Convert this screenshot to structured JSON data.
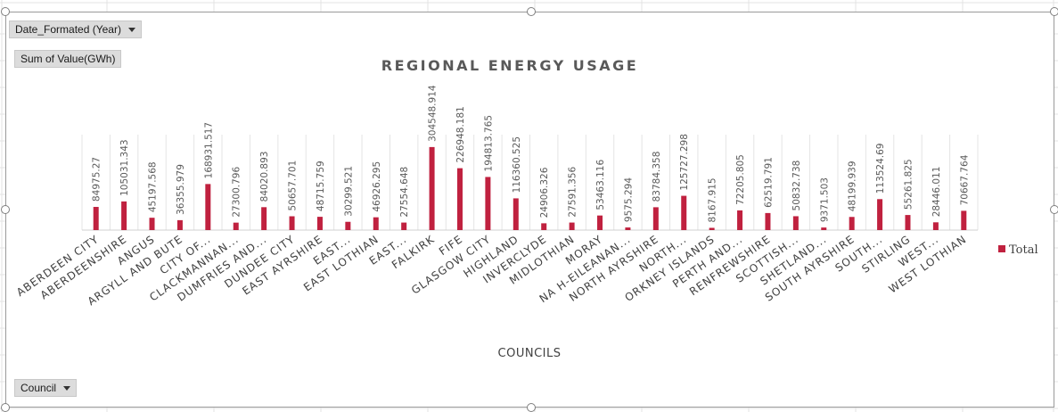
{
  "pivot": {
    "filter_button": "Date_Formated  (Year)",
    "values_button": "Sum of Value(GWh)",
    "axis_button": "Council"
  },
  "colors": {
    "bar": "#c0213f",
    "grid": "#e4e4e4"
  },
  "chart_data": {
    "type": "bar",
    "title": "REGIONAL ENERGY USAGE",
    "xlabel": "COUNCILS",
    "ylabel": "",
    "ylim": [
      0,
      350000
    ],
    "grid": true,
    "legend_position": "right",
    "categories": [
      "ABERDEEN CITY",
      "ABERDEENSHIRE",
      "ANGUS",
      "ARGYLL AND BUTE",
      "CITY OF...",
      "CLACKMANNAN...",
      "DUMFRIES AND...",
      "DUNDEE CITY",
      "EAST AYRSHIRE",
      "EAST...",
      "EAST LOTHIAN",
      "EAST...",
      "FALKIRK",
      "FIFE",
      "GLASGOW CITY",
      "HIGHLAND",
      "INVERCLYDE",
      "MIDLOTHIAN",
      "MORAY",
      "NA H-EILEANAN...",
      "NORTH AYRSHIRE",
      "NORTH...",
      "ORKNEY ISLANDS",
      "PERTH AND...",
      "RENFREWSHIRE",
      "SCOTTISH...",
      "SHETLAND...",
      "SOUTH AYRSHIRE",
      "SOUTH...",
      "STIRLING",
      "WEST...",
      "WEST LOTHIAN"
    ],
    "series": [
      {
        "name": "Total",
        "values": [
          84975.27,
          105031.343,
          45197.568,
          36355.979,
          168931.517,
          27300.796,
          84020.893,
          50657.701,
          48715.759,
          30299.521,
          46926.295,
          27554.648,
          304548.914,
          226948.181,
          194813.765,
          116360.525,
          24906.326,
          27591.356,
          53463.116,
          9575.294,
          83784.358,
          125727.298,
          8167.915,
          72205.805,
          62519.791,
          50832.738,
          9371.503,
          48199.939,
          113524.69,
          55261.825,
          28446.011,
          70667.764
        ],
        "labels": [
          "84975.27",
          "105031.343",
          "45197.568",
          "36355.979",
          "168931.517",
          "27300.796",
          "84020.893",
          "50657.701",
          "48715.759",
          "30299.521",
          "46926.295",
          "27554.648",
          "304548.914",
          "226948.181",
          "194813.765",
          "116360.525",
          "24906.326",
          "27591.356",
          "53463.116",
          "9575.294",
          "83784.358",
          "125727.298",
          "8167.915",
          "72205.805",
          "62519.791",
          "50832.738",
          "9371.503",
          "48199.939",
          "113524.69",
          "55261.825",
          "28446.011",
          "70667.764"
        ]
      }
    ]
  }
}
